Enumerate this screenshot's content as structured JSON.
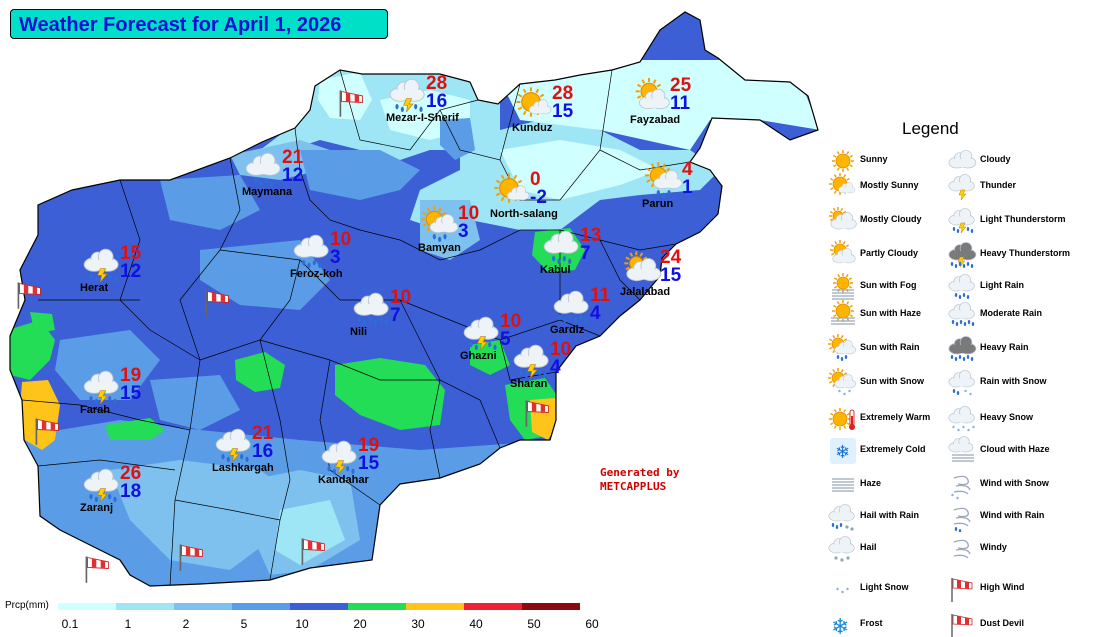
{
  "title": "Weather Forecast for April 1, 2026",
  "generated": {
    "line1": "Generated by",
    "line2": "METCAPPLUS"
  },
  "legend": {
    "title": "Legend",
    "items": [
      {
        "label": "Sunny",
        "icon": "sunny-icon"
      },
      {
        "label": "Cloudy",
        "icon": "cloudy-icon"
      },
      {
        "label": "Mostly Sunny",
        "icon": "mostly-sunny-icon"
      },
      {
        "label": "Thunder",
        "icon": "thunder-icon"
      },
      {
        "label": "Mostly Cloudy",
        "icon": "mostly-cloudy-icon"
      },
      {
        "label": "Light Thunderstorm",
        "icon": "light-thunderstorm-icon"
      },
      {
        "label": "Partly Cloudy",
        "icon": "partly-cloudy-icon"
      },
      {
        "label": "Heavy Thunderstorm",
        "icon": "heavy-thunderstorm-icon"
      },
      {
        "label": "Sun with Fog",
        "icon": "sun-with-fog-icon"
      },
      {
        "label": "Light Rain",
        "icon": "light-rain-icon"
      },
      {
        "label": "Sun with Haze",
        "icon": "sun-with-haze-icon"
      },
      {
        "label": "Moderate Rain",
        "icon": "moderate-rain-icon"
      },
      {
        "label": "Sun with Rain",
        "icon": "sun-with-rain-icon"
      },
      {
        "label": "Heavy Rain",
        "icon": "heavy-rain-icon"
      },
      {
        "label": "Sun with Snow",
        "icon": "sun-with-snow-icon"
      },
      {
        "label": "Rain with Snow",
        "icon": "rain-with-snow-icon"
      },
      {
        "label": "Extremely Warm",
        "icon": "extremely-warm-icon"
      },
      {
        "label": "Heavy Snow",
        "icon": "heavy-snow-icon"
      },
      {
        "label": "Extremely Cold",
        "icon": "extremely-cold-icon"
      },
      {
        "label": "Cloud with Haze",
        "icon": "cloud-with-haze-icon"
      },
      {
        "label": "Haze",
        "icon": "haze-icon"
      },
      {
        "label": "Wind with Snow",
        "icon": "wind-with-snow-icon"
      },
      {
        "label": "Hail with Rain",
        "icon": "hail-with-rain-icon"
      },
      {
        "label": "Wind with Rain",
        "icon": "wind-with-rain-icon"
      },
      {
        "label": "Hail",
        "icon": "hail-icon"
      },
      {
        "label": "Windy",
        "icon": "windy-icon"
      },
      {
        "label": "Light Snow",
        "icon": "light-snow-icon"
      },
      {
        "label": "High Wind",
        "icon": "high-wind-icon"
      },
      {
        "label": "Frost",
        "icon": "frost-icon"
      },
      {
        "label": "Dust Devil",
        "icon": "dust-devil-icon"
      }
    ]
  },
  "scale": {
    "title": "Prcp(mm)",
    "ticks": [
      "0.1",
      "1",
      "2",
      "5",
      "10",
      "20",
      "30",
      "40",
      "50",
      "60"
    ],
    "colors": [
      "#cfffff",
      "#9ee6f5",
      "#7fc1ee",
      "#5a9de6",
      "#3c5fd6",
      "#22dd55",
      "#ffc41a",
      "#ee2233",
      "#8a0a10"
    ]
  },
  "cities": [
    {
      "name": "Mezar-I-Sherif",
      "hi": "28",
      "lo": "16",
      "icon": "light-thunderstorm-icon"
    },
    {
      "name": "Kunduz",
      "hi": "28",
      "lo": "15",
      "icon": "mostly-sunny-icon"
    },
    {
      "name": "Fayzabad",
      "hi": "25",
      "lo": "11",
      "icon": "partly-cloudy-icon"
    },
    {
      "name": "Maymana",
      "hi": "21",
      "lo": "12",
      "icon": "light-rain-icon"
    },
    {
      "name": "North-salang",
      "hi": "0",
      "lo": "-2",
      "icon": "mostly-sunny-icon"
    },
    {
      "name": "Parun",
      "hi": "4",
      "lo": "1",
      "icon": "sun-with-rain-icon"
    },
    {
      "name": "Bamyan",
      "hi": "10",
      "lo": "3",
      "icon": "sun-with-rain-icon"
    },
    {
      "name": "Herat",
      "hi": "15",
      "lo": "12",
      "icon": "light-thunderstorm-icon"
    },
    {
      "name": "Feroz-koh",
      "hi": "10",
      "lo": "3",
      "icon": "light-rain-icon"
    },
    {
      "name": "Kabul",
      "hi": "13",
      "lo": "7",
      "icon": "light-rain-icon"
    },
    {
      "name": "Jalalabad",
      "hi": "24",
      "lo": "15",
      "icon": "mostly-cloudy-icon"
    },
    {
      "name": "Nili",
      "hi": "10",
      "lo": "7",
      "icon": "moderate-rain-icon"
    },
    {
      "name": "Gardiz",
      "hi": "11",
      "lo": "4",
      "icon": "moderate-rain-icon"
    },
    {
      "name": "Ghazni",
      "hi": "10",
      "lo": "5",
      "icon": "light-thunderstorm-icon"
    },
    {
      "name": "Sharan",
      "hi": "10",
      "lo": "4",
      "icon": "light-thunderstorm-icon"
    },
    {
      "name": "Farah",
      "hi": "19",
      "lo": "15",
      "icon": "light-thunderstorm-icon"
    },
    {
      "name": "Lashkargah",
      "hi": "21",
      "lo": "16",
      "icon": "light-thunderstorm-icon"
    },
    {
      "name": "Kandahar",
      "hi": "19",
      "lo": "15",
      "icon": "light-thunderstorm-icon"
    },
    {
      "name": "Zaranj",
      "hi": "26",
      "lo": "18",
      "icon": "light-thunderstorm-icon"
    }
  ],
  "wind_markers": [
    {
      "icon": "high-wind-icon"
    },
    {
      "icon": "high-wind-icon"
    },
    {
      "icon": "high-wind-icon"
    },
    {
      "icon": "high-wind-icon"
    },
    {
      "icon": "high-wind-icon"
    },
    {
      "icon": "high-wind-icon"
    },
    {
      "icon": "high-wind-icon"
    },
    {
      "icon": "high-wind-icon"
    }
  ]
}
